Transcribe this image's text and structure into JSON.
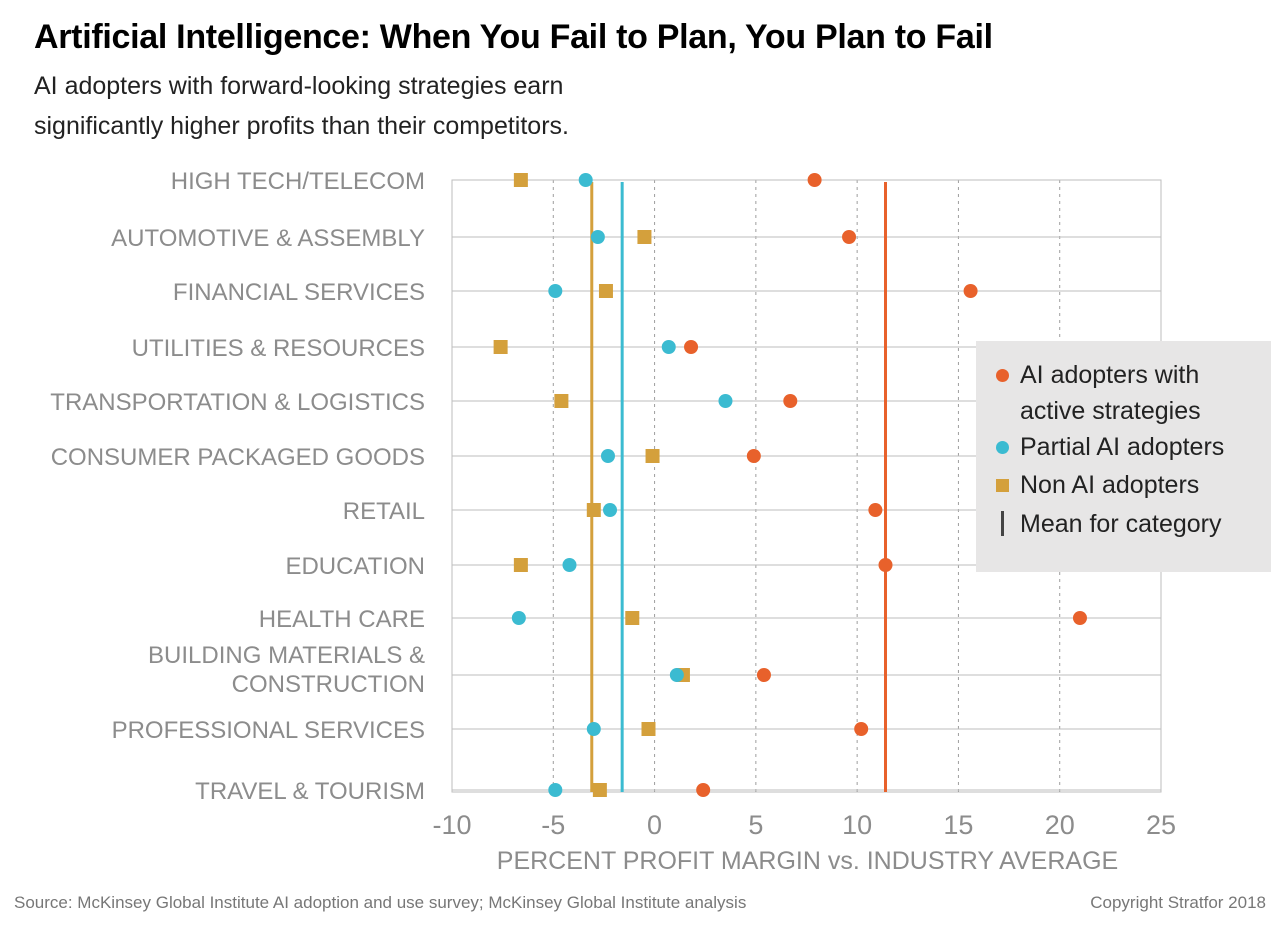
{
  "header": {
    "title": "Artificial Intelligence: When You Fail to Plan, You Plan to Fail",
    "subtitle": "AI adopters with forward-looking strategies earn significantly higher profits than their competitors."
  },
  "footer": {
    "source": "Source: McKinsey Global Institute AI adoption and use survey; McKinsey Global Institute analysis",
    "copyright": "Copyright Stratfor 2018"
  },
  "colors": {
    "active": "#e8612b",
    "partial": "#3bbbd1",
    "non": "#d4a03c",
    "grid": "#bdbdbd",
    "axis_text": "#8c8c8c",
    "legend_bg": "#e7e6e6"
  },
  "legend": {
    "items": [
      {
        "label": "AI adopters with active strategies",
        "marker": "circle",
        "color": "#e8612b"
      },
      {
        "label": "Partial AI adopters",
        "marker": "circle",
        "color": "#3bbbd1"
      },
      {
        "label": "Non AI adopters",
        "marker": "square",
        "color": "#d4a03c"
      },
      {
        "label": "Mean for category",
        "marker": "line",
        "color": "#444444"
      }
    ]
  },
  "chart_data": {
    "type": "scatter",
    "title": "Artificial Intelligence: When You Fail to Plan, You Plan to Fail",
    "xlabel": "PERCENT PROFIT MARGIN vs. INDUSTRY AVERAGE",
    "ylabel": "",
    "xlim": [
      -10,
      25
    ],
    "xticks": [
      -10,
      -5,
      0,
      5,
      10,
      15,
      20,
      25
    ],
    "grid": "vertical dashed",
    "legend_position": "right",
    "categories": [
      "HIGH TECH/TELECOM",
      "AUTOMOTIVE & ASSEMBLY",
      "FINANCIAL SERVICES",
      "UTILITIES & RESOURCES",
      "TRANSPORTATION & LOGISTICS",
      "CONSUMER PACKAGED GOODS",
      "RETAIL",
      "EDUCATION",
      "HEALTH CARE",
      "BUILDING MATERIALS & CONSTRUCTION",
      "PROFESSIONAL SERVICES",
      "TRAVEL & TOURISM"
    ],
    "category_lines": [
      [
        "HIGH TECH/TELECOM"
      ],
      [
        "AUTOMOTIVE & ASSEMBLY"
      ],
      [
        "FINANCIAL SERVICES"
      ],
      [
        "UTILITIES & RESOURCES"
      ],
      [
        "TRANSPORTATION & LOGISTICS"
      ],
      [
        "CONSUMER PACKAGED GOODS"
      ],
      [
        "RETAIL"
      ],
      [
        "EDUCATION"
      ],
      [
        "HEALTH CARE"
      ],
      [
        "BUILDING MATERIALS &",
        "CONSTRUCTION"
      ],
      [
        "PROFESSIONAL SERVICES"
      ],
      [
        "TRAVEL & TOURISM"
      ]
    ],
    "series": [
      {
        "name": "AI adopters with active strategies",
        "marker": "circle",
        "color": "#e8612b",
        "values": [
          7.9,
          9.6,
          15.6,
          1.8,
          6.7,
          4.9,
          10.9,
          11.4,
          21.0,
          5.4,
          10.2,
          2.4
        ]
      },
      {
        "name": "Partial AI adopters",
        "marker": "circle",
        "color": "#3bbbd1",
        "values": [
          -3.4,
          -2.8,
          -4.9,
          0.7,
          3.5,
          -2.3,
          -2.2,
          -4.2,
          -6.7,
          1.1,
          -3.0,
          -4.9
        ]
      },
      {
        "name": "Non AI adopters",
        "marker": "square",
        "color": "#d4a03c",
        "values": [
          -6.6,
          -0.5,
          -2.4,
          -7.6,
          -4.6,
          -0.1,
          -3.0,
          -6.6,
          -1.1,
          1.4,
          -0.3,
          -2.7
        ]
      }
    ],
    "means": [
      {
        "name": "AI adopters with active strategies",
        "value": 11.4,
        "color": "#e8612b"
      },
      {
        "name": "Partial AI adopters",
        "value": -1.6,
        "color": "#3bbbd1"
      },
      {
        "name": "Non AI adopters",
        "value": -3.1,
        "color": "#d4a03c"
      }
    ]
  }
}
